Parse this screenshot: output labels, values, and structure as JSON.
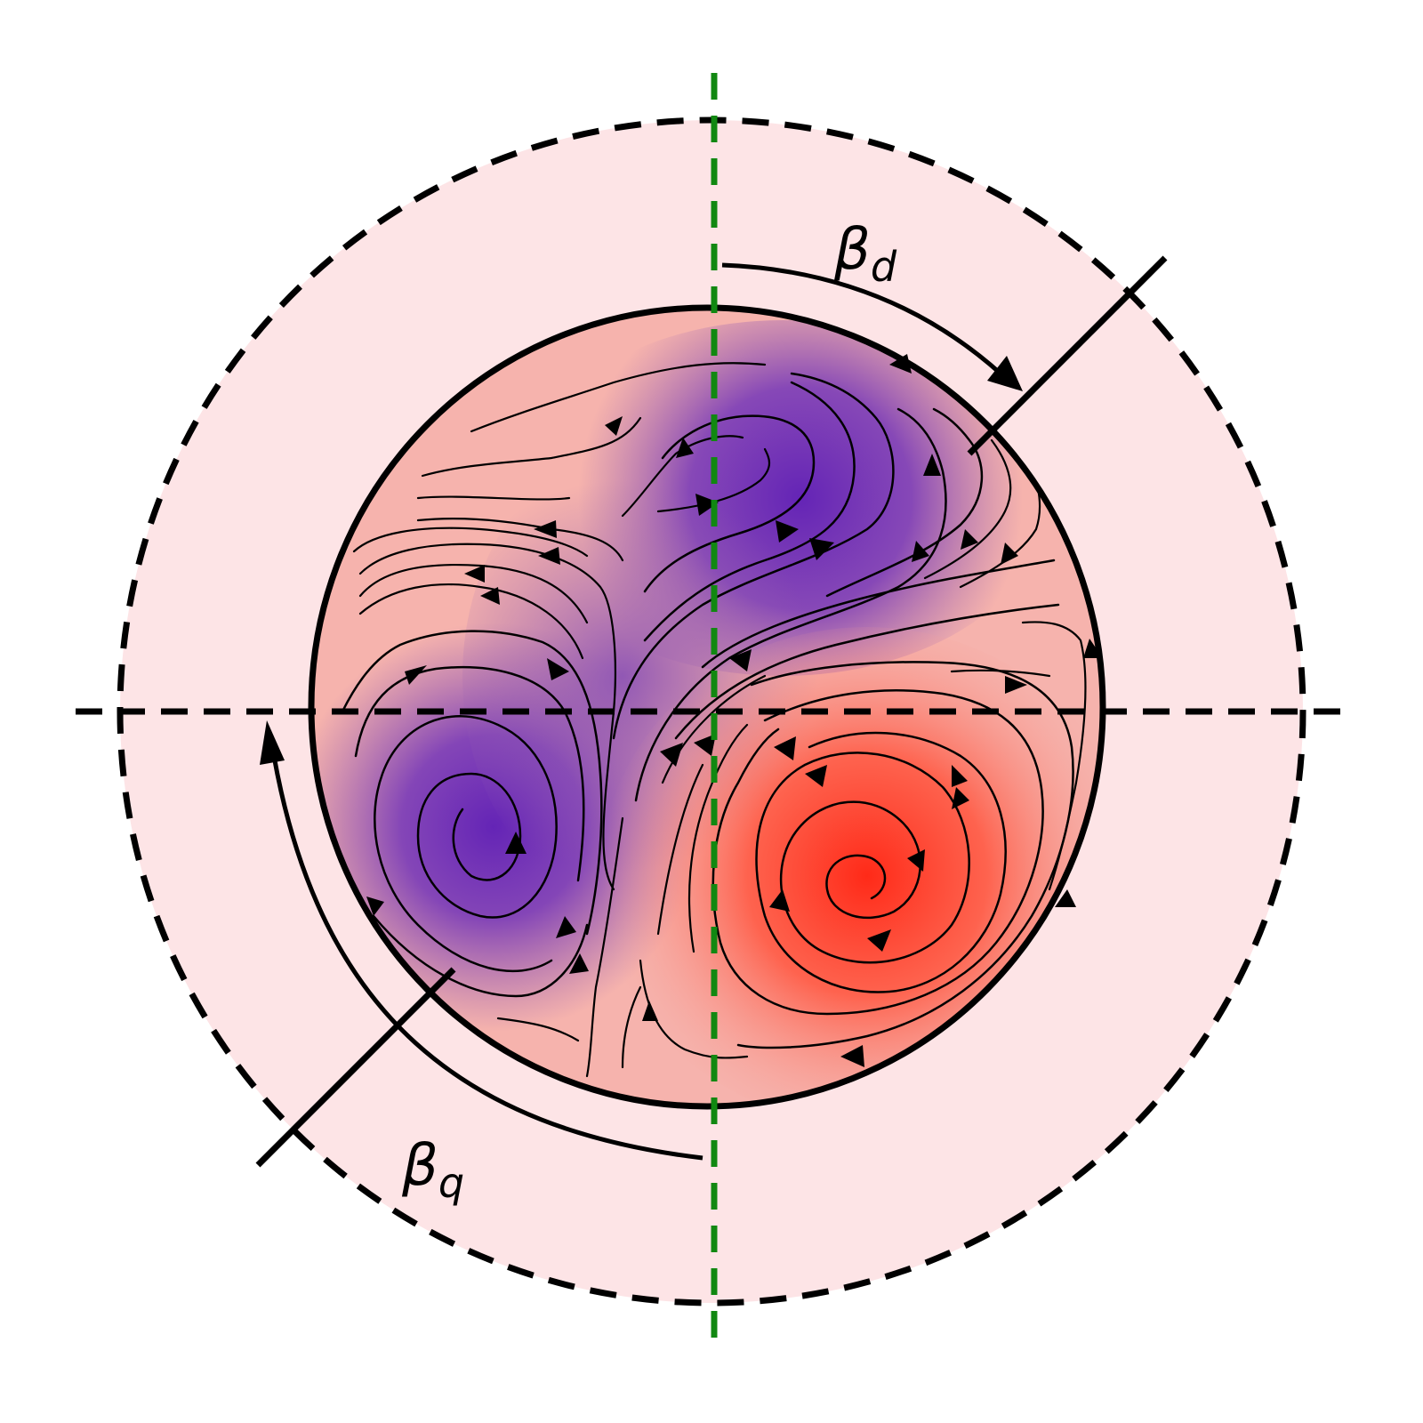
{
  "labels": {
    "beta_d_main": "β",
    "beta_d_sub": "d",
    "beta_q_main": "β",
    "beta_q_sub": "q"
  },
  "colors": {
    "background_annulus": "#fde4e6",
    "vortex_negative": "#6a2ab8",
    "vortex_positive": "#ff2a1a",
    "field_base": "#f6b3ad",
    "axis_green": "#118811",
    "stroke": "#000000"
  },
  "icons": [
    "arrow-head-icon"
  ]
}
